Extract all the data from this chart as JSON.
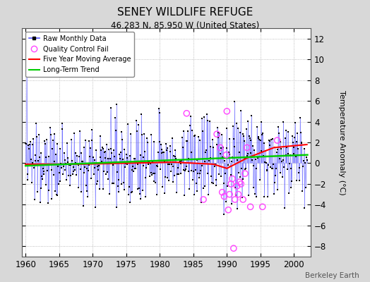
{
  "title": "SENEY WILDLIFE REFUGE",
  "subtitle": "46.283 N, 85.950 W (United States)",
  "ylabel": "Temperature Anomaly (°C)",
  "credit": "Berkeley Earth",
  "xlim": [
    1959.5,
    2002.5
  ],
  "ylim": [
    -9,
    13
  ],
  "yticks": [
    -8,
    -6,
    -4,
    -2,
    0,
    2,
    4,
    6,
    8,
    10,
    12
  ],
  "xticks": [
    1960,
    1965,
    1970,
    1975,
    1980,
    1985,
    1990,
    1995,
    2000
  ],
  "bg_color": "#d8d8d8",
  "plot_bg_color": "#ffffff",
  "raw_line_color": "#5555ff",
  "raw_dot_color": "#000000",
  "qc_fail_color": "#ff44ff",
  "moving_avg_color": "#ff0000",
  "trend_color": "#00cc00",
  "seed": 137
}
